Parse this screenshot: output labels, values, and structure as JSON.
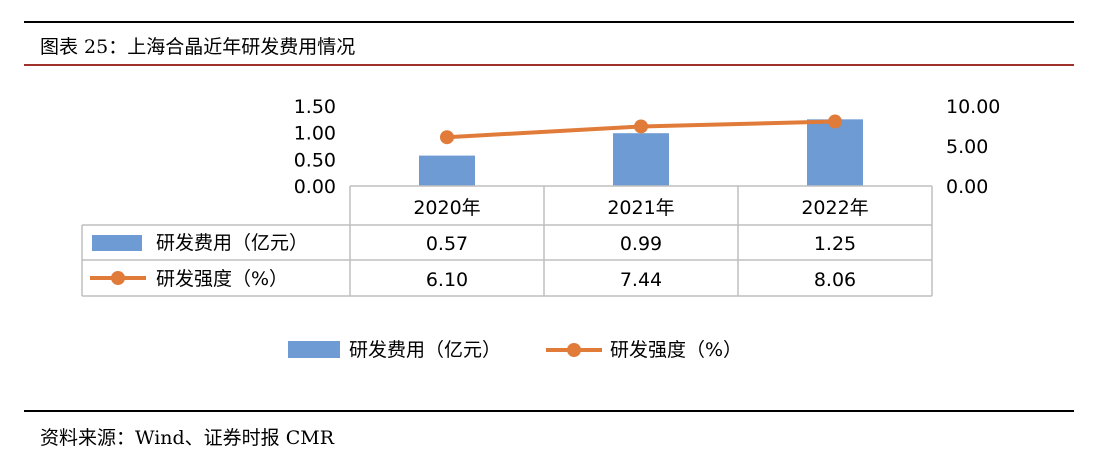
{
  "header": {
    "title": "图表 25：上海合晶近年研发费用情况"
  },
  "footer": {
    "source": "资料来源：Wind、证券时报 CMR"
  },
  "colors": {
    "bar": "#6f9bd4",
    "line": "#e07b39",
    "grid": "#bfbfbf",
    "accent_line": "#a0322b"
  },
  "chart_data": {
    "type": "bar",
    "categories": [
      "2020年",
      "2021年",
      "2022年"
    ],
    "series": [
      {
        "name": "研发费用（亿元）",
        "type": "bar",
        "axis": "left",
        "values": [
          0.57,
          0.99,
          1.25
        ],
        "labels": [
          "0.57",
          "0.99",
          "1.25"
        ]
      },
      {
        "name": "研发强度（%）",
        "type": "line",
        "axis": "right",
        "values": [
          6.1,
          7.44,
          8.06
        ],
        "labels": [
          "6.10",
          "7.44",
          "8.06"
        ]
      }
    ],
    "left_axis": {
      "ylim": [
        0,
        1.5
      ],
      "ticks": [
        "0.00",
        "0.50",
        "1.00",
        "1.50"
      ]
    },
    "right_axis": {
      "ylim": [
        0,
        10
      ],
      "ticks": [
        "0.00",
        "5.00",
        "10.00"
      ]
    },
    "legend": [
      "研发费用（亿元）",
      "研发强度（%）"
    ],
    "legend_position": "bottom",
    "data_table": true
  }
}
